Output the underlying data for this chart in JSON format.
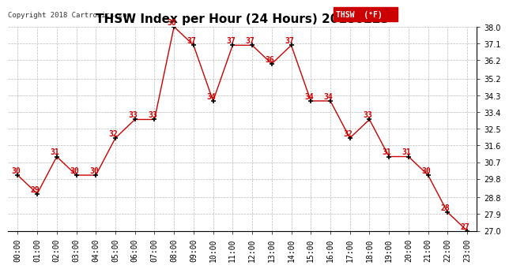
{
  "title": "THSW Index per Hour (24 Hours) 20180223",
  "copyright": "Copyright 2018 Cartronics.com",
  "legend_label": "THSW  (°F)",
  "hours": [
    "00:00",
    "01:00",
    "02:00",
    "03:00",
    "04:00",
    "05:00",
    "06:00",
    "07:00",
    "08:00",
    "09:00",
    "10:00",
    "11:00",
    "12:00",
    "13:00",
    "14:00",
    "15:00",
    "16:00",
    "17:00",
    "18:00",
    "19:00",
    "20:00",
    "21:00",
    "22:00",
    "23:00"
  ],
  "values": [
    30,
    29,
    31,
    30,
    30,
    32,
    33,
    33,
    38,
    37,
    34,
    37,
    37,
    36,
    37,
    34,
    34,
    32,
    33,
    31,
    31,
    30,
    28,
    27
  ],
  "line_color": "#cc0000",
  "marker_color": "#000000",
  "label_color": "#cc0000",
  "background_color": "#ffffff",
  "grid_color": "#bbbbbb",
  "ylim": [
    27.0,
    38.0
  ],
  "yticks": [
    27.0,
    27.9,
    28.8,
    29.8,
    30.7,
    31.6,
    32.5,
    33.4,
    34.3,
    35.2,
    36.2,
    37.1,
    38.0
  ],
  "title_fontsize": 11,
  "label_fontsize": 7,
  "tick_fontsize": 7,
  "copyright_fontsize": 6.5,
  "legend_bg_color": "#cc0000",
  "legend_text_color": "#ffffff"
}
